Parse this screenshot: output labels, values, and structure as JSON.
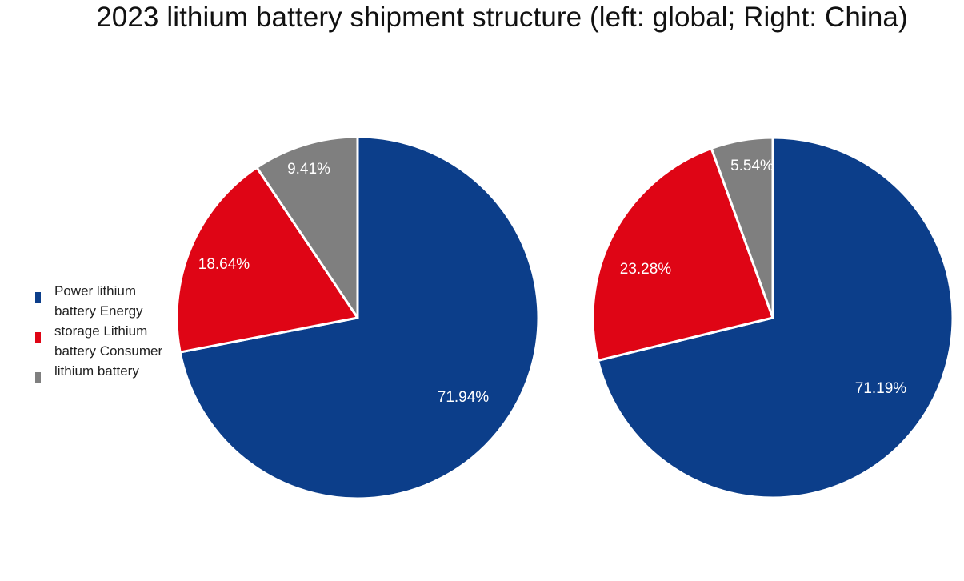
{
  "title": "2023 lithium battery shipment structure (left: global; Right: China)",
  "legend": {
    "lines": [
      "Power lithium",
      "battery Energy",
      "storage Lithium",
      "battery Consumer",
      " lithium battery"
    ],
    "colors": [
      "#0c3e8a",
      "#df0515",
      "#7f7f7f"
    ]
  },
  "chart_data": [
    {
      "type": "pie",
      "title": "",
      "categories": [
        "Power lithium battery",
        "Energy storage Lithium battery",
        "Consumer lithium battery"
      ],
      "values": [
        71.94,
        18.64,
        9.41
      ],
      "labels": [
        "71.94%",
        "18.64%",
        "9.41%"
      ],
      "colors": [
        "#0c3e8a",
        "#df0515",
        "#7f7f7f"
      ],
      "start_angle": "12 o'clock",
      "direction": "clockwise",
      "legend_position": "left"
    },
    {
      "type": "pie",
      "title": "",
      "categories": [
        "Power lithium battery",
        "Energy storage Lithium battery",
        "Consumer lithium battery"
      ],
      "values": [
        71.19,
        23.28,
        5.54
      ],
      "labels": [
        "71.19%",
        "23.28%",
        "5.54%"
      ],
      "colors": [
        "#0c3e8a",
        "#df0515",
        "#7f7f7f"
      ],
      "start_angle": "12 o'clock",
      "direction": "clockwise"
    }
  ]
}
